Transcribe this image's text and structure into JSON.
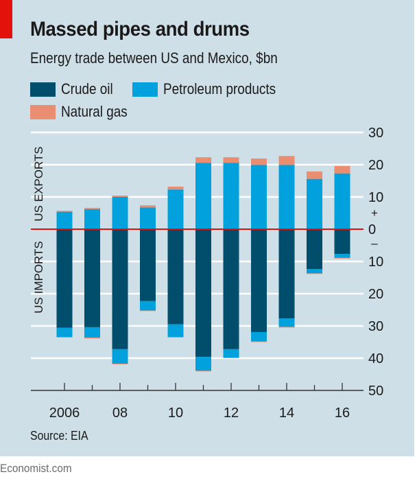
{
  "header": {
    "title": "Massed pipes and drums",
    "subtitle": "Energy trade between US and Mexico, $bn"
  },
  "legend": [
    {
      "label": "Crude oil",
      "color": "#004e6c"
    },
    {
      "label": "Petroleum products",
      "color": "#00a1dc"
    },
    {
      "label": "Natural gas",
      "color": "#ea8e71"
    }
  ],
  "footer": {
    "source": "Source: EIA",
    "brand": "Economist.com"
  },
  "colors": {
    "background": "#cfdfe7",
    "accent_red": "#e3120b",
    "zero_line": "#e3120b",
    "grid": "#ffffff",
    "axis": "#333333"
  },
  "chart_data": {
    "type": "bar",
    "stacked": true,
    "diverging": true,
    "title": "Massed pipes and drums",
    "subtitle": "Energy trade between US and Mexico, $bn",
    "xlabel": "",
    "ylabel": "",
    "side_labels": {
      "positive": "US EXPORTS",
      "negative": "US IMPORTS"
    },
    "sign_markers": {
      "positive": "+",
      "negative": "–"
    },
    "categories": [
      "2006",
      "2007",
      "2008",
      "2009",
      "2010",
      "2011",
      "2012",
      "2013",
      "2014",
      "2015",
      "2016"
    ],
    "x_tick_labels": [
      {
        "index": 0,
        "label": "2006"
      },
      {
        "index": 2,
        "label": "08"
      },
      {
        "index": 4,
        "label": "10"
      },
      {
        "index": 6,
        "label": "12"
      },
      {
        "index": 8,
        "label": "14"
      },
      {
        "index": 10,
        "label": "16"
      }
    ],
    "y_ticks": [
      30,
      20,
      10,
      0,
      -10,
      -20,
      -30,
      -40,
      -50
    ],
    "y_tick_labels": [
      "30",
      "20",
      "10",
      "0",
      "10",
      "20",
      "30",
      "40",
      "50"
    ],
    "ylim": [
      -50,
      30
    ],
    "grid": true,
    "legend_position": "top-left",
    "exports": {
      "series": [
        {
          "name": "Crude oil",
          "values": [
            0,
            0,
            0,
            0,
            0,
            0,
            0,
            0,
            0,
            0,
            0
          ]
        },
        {
          "name": "Petroleum products",
          "values": [
            5.4,
            6.2,
            10.0,
            6.7,
            12.3,
            20.6,
            20.6,
            19.9,
            19.9,
            15.6,
            17.3
          ]
        },
        {
          "name": "Natural gas",
          "values": [
            0.3,
            0.4,
            0.4,
            0.7,
            0.9,
            1.7,
            1.7,
            2.0,
            2.8,
            2.3,
            2.3
          ]
        }
      ]
    },
    "imports": {
      "series": [
        {
          "name": "Crude oil",
          "values": [
            30.6,
            30.4,
            37.2,
            22.3,
            29.5,
            39.6,
            37.2,
            31.9,
            27.7,
            12.4,
            7.7
          ]
        },
        {
          "name": "Petroleum products",
          "values": [
            2.8,
            3.2,
            4.5,
            2.9,
            3.9,
            4.3,
            2.6,
            2.9,
            2.6,
            1.3,
            1.2
          ]
        },
        {
          "name": "Natural gas",
          "values": [
            0.2,
            0.3,
            0.2,
            0.2,
            0.2,
            0.2,
            0.2,
            0.2,
            0.2,
            0.2,
            0.2
          ]
        }
      ]
    }
  }
}
